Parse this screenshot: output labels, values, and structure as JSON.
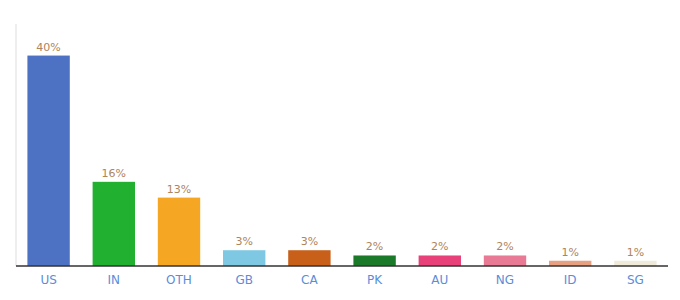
{
  "chart_data": {
    "type": "bar",
    "categories": [
      "US",
      "IN",
      "OTH",
      "GB",
      "CA",
      "PK",
      "AU",
      "NG",
      "ID",
      "SG"
    ],
    "values": [
      40,
      16,
      13,
      3,
      3,
      2,
      2,
      2,
      1,
      1
    ],
    "value_labels": [
      "40%",
      "16%",
      "13%",
      "3%",
      "3%",
      "2%",
      "2%",
      "2%",
      "1%",
      "1%"
    ],
    "colors": [
      "#4d72c4",
      "#22b030",
      "#f5a623",
      "#7ec8e3",
      "#c8601a",
      "#1a7a2a",
      "#e8417a",
      "#e87a96",
      "#e8a080",
      "#f0ead8"
    ],
    "ylim": [
      0,
      46
    ],
    "data_labels": true,
    "tick_labels": "x"
  }
}
